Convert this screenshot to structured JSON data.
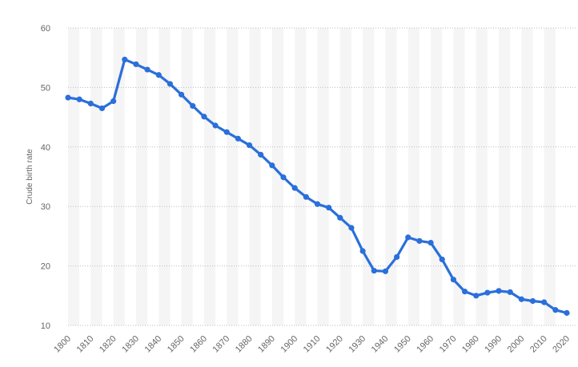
{
  "chart_data": {
    "type": "line",
    "title": "",
    "xlabel": "",
    "ylabel": "Crude birth rate",
    "ylim": [
      10,
      60
    ],
    "xlim": [
      1800,
      2020
    ],
    "yticks": [
      10,
      20,
      30,
      40,
      50,
      60
    ],
    "xticks": [
      1800,
      1810,
      1820,
      1830,
      1840,
      1850,
      1860,
      1870,
      1880,
      1890,
      1900,
      1910,
      1920,
      1930,
      1940,
      1950,
      1960,
      1970,
      1980,
      1990,
      2000,
      2010,
      2020
    ],
    "grid": "horizontal dotted",
    "legend": "none",
    "color": "#2a6fdb",
    "series": [
      {
        "x": [
          1800,
          1805,
          1810,
          1815,
          1820,
          1825,
          1830,
          1835,
          1840,
          1845,
          1850,
          1855,
          1860,
          1865,
          1870,
          1875,
          1880,
          1885,
          1890,
          1895,
          1900,
          1905,
          1910,
          1915,
          1920,
          1925,
          1930,
          1935,
          1940,
          1945,
          1950,
          1955,
          1960,
          1965,
          1970,
          1975,
          1980,
          1985,
          1990,
          1995,
          2000,
          2005,
          2010,
          2015,
          2020
        ],
        "values": [
          48.3,
          48.0,
          47.3,
          46.5,
          47.7,
          54.7,
          53.9,
          53.0,
          52.1,
          50.6,
          48.8,
          46.9,
          45.1,
          43.6,
          42.5,
          41.4,
          40.3,
          38.7,
          36.9,
          34.9,
          33.1,
          31.6,
          30.4,
          29.8,
          28.1,
          26.4,
          22.5,
          19.2,
          19.1,
          21.5,
          24.8,
          24.2,
          23.9,
          21.1,
          17.7,
          15.7,
          15.0,
          15.5,
          15.8,
          15.6,
          14.4,
          14.1,
          13.9,
          12.6,
          12.1
        ]
      }
    ]
  }
}
